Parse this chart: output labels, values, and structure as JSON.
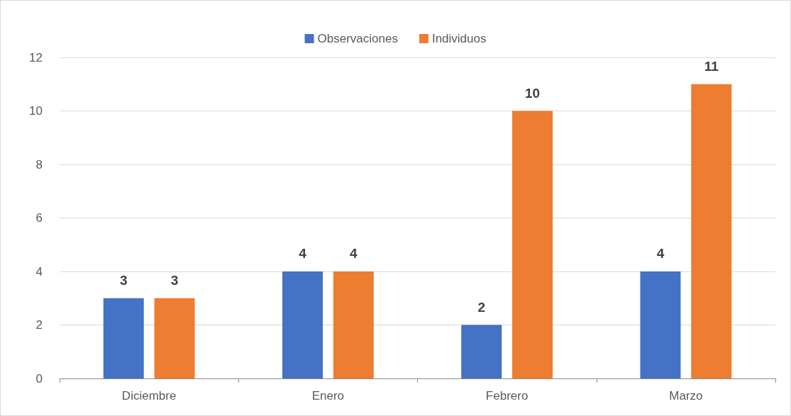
{
  "chart_data": {
    "type": "bar",
    "categories": [
      "Diciembre",
      "Enero",
      "Febrero",
      "Marzo"
    ],
    "series": [
      {
        "name": "Observaciones",
        "color": "#4472c4",
        "values": [
          3,
          4,
          2,
          4
        ]
      },
      {
        "name": "Individuos",
        "color": "#ed7d31",
        "values": [
          3,
          4,
          10,
          11
        ]
      }
    ],
    "ylim": [
      0,
      12
    ],
    "yticks": [
      0,
      2,
      4,
      6,
      8,
      10,
      12
    ],
    "grid": "y",
    "legend": "top",
    "data_labels": true
  }
}
